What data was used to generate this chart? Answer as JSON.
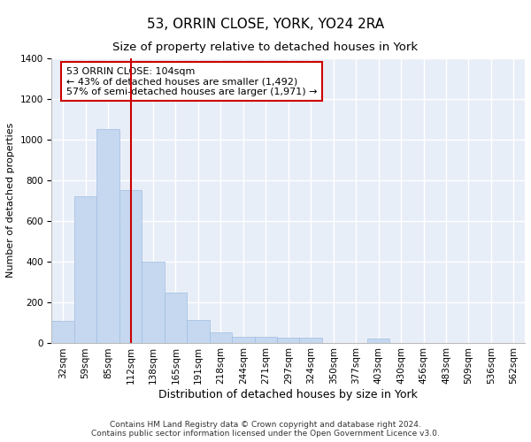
{
  "title": "53, ORRIN CLOSE, YORK, YO24 2RA",
  "subtitle": "Size of property relative to detached houses in York",
  "xlabel": "Distribution of detached houses by size in York",
  "ylabel": "Number of detached properties",
  "categories": [
    "32sqm",
    "59sqm",
    "85sqm",
    "112sqm",
    "138sqm",
    "165sqm",
    "191sqm",
    "218sqm",
    "244sqm",
    "271sqm",
    "297sqm",
    "324sqm",
    "350sqm",
    "377sqm",
    "403sqm",
    "430sqm",
    "456sqm",
    "483sqm",
    "509sqm",
    "536sqm",
    "562sqm"
  ],
  "values": [
    105,
    720,
    1050,
    750,
    400,
    245,
    110,
    50,
    30,
    30,
    25,
    25,
    0,
    0,
    20,
    0,
    0,
    0,
    0,
    0,
    0
  ],
  "bar_color": "#c5d8f0",
  "bar_edge_color": "#a0bee0",
  "background_color": "#e8eef8",
  "grid_color": "#ffffff",
  "vline_x": 3.0,
  "vline_color": "#cc0000",
  "annotation_text": "53 ORRIN CLOSE: 104sqm\n← 43% of detached houses are smaller (1,492)\n57% of semi-detached houses are larger (1,971) →",
  "annotation_box_color": "#ffffff",
  "annotation_box_edge": "#cc0000",
  "footer": "Contains HM Land Registry data © Crown copyright and database right 2024.\nContains public sector information licensed under the Open Government Licence v3.0.",
  "ylim": [
    0,
    1400
  ],
  "yticks": [
    0,
    200,
    400,
    600,
    800,
    1000,
    1200,
    1400
  ],
  "title_fontsize": 11,
  "subtitle_fontsize": 9.5,
  "xlabel_fontsize": 9,
  "ylabel_fontsize": 8,
  "tick_fontsize": 7.5,
  "footer_fontsize": 6.5,
  "ann_fontsize": 8
}
